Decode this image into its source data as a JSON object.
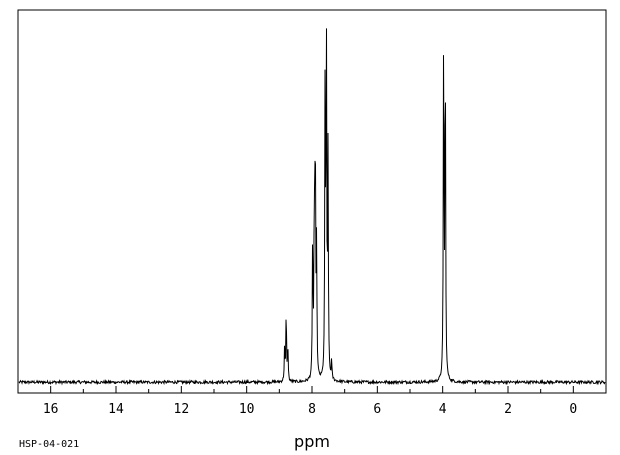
{
  "chart_data": {
    "type": "line",
    "xlabel": "ppm",
    "ylabel": "",
    "x_reversed": true,
    "xlim": [
      17.0,
      -1.0
    ],
    "ylim": [
      -0.03,
      1.03
    ],
    "x_ticks": [
      16,
      14,
      12,
      10,
      8,
      6,
      4,
      2,
      0
    ],
    "x_tick_labels": [
      "16",
      "14",
      "12",
      "10",
      "8",
      "6",
      "4",
      "2",
      "0"
    ],
    "grid": false,
    "legend": "none",
    "line_color": "#000000",
    "sample_id": "HSP-04-021",
    "baseline": 0.0,
    "noise_amplitude": 0.004,
    "peaks": [
      {
        "ppm": 8.84,
        "height": 0.09
      },
      {
        "ppm": 8.79,
        "height": 0.2
      },
      {
        "ppm": 8.74,
        "height": 0.1
      },
      {
        "ppm": 7.98,
        "height": 0.39
      },
      {
        "ppm": 7.93,
        "height": 0.47
      },
      {
        "ppm": 7.9,
        "height": 0.68
      },
      {
        "ppm": 7.86,
        "height": 0.36
      },
      {
        "ppm": 7.6,
        "height": 0.8
      },
      {
        "ppm": 7.56,
        "height": 0.97
      },
      {
        "ppm": 7.51,
        "height": 0.62
      },
      {
        "ppm": 7.4,
        "height": 0.05
      },
      {
        "ppm": 3.97,
        "height": 0.98
      },
      {
        "ppm": 3.92,
        "height": 0.96
      }
    ]
  }
}
